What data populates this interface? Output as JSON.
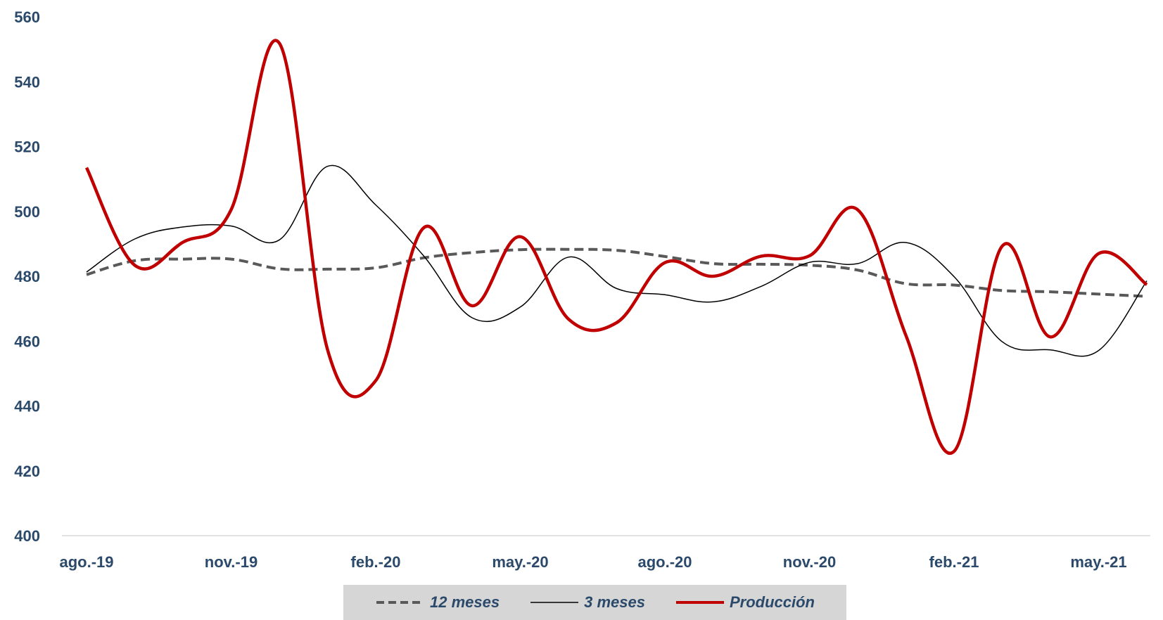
{
  "chart_data": {
    "type": "line",
    "title": "",
    "xlabel": "",
    "ylabel": "",
    "ylim": [
      400,
      560
    ],
    "yticks": [
      "400",
      "420",
      "440",
      "460",
      "480",
      "500",
      "520",
      "540",
      "560"
    ],
    "x": [
      "ago.-19",
      "sep.-19",
      "oct.-19",
      "nov.-19",
      "dic.-19",
      "ene.-20",
      "feb.-20",
      "mar.-20",
      "abr.-20",
      "may.-20",
      "jun.-20",
      "jul.-20",
      "ago.-20",
      "sep.-20",
      "oct.-20",
      "nov.-20",
      "dic.-20",
      "ene.-21",
      "feb.-21",
      "mar.-21",
      "abr.-21",
      "may.-21",
      "jun.-21"
    ],
    "xtick_labels": [
      "ago.-19",
      "nov.-19",
      "feb.-20",
      "may.-20",
      "ago.-20",
      "nov.-20",
      "feb.-21",
      "may.-21"
    ],
    "grid": false,
    "legend_position": "bottom-center",
    "series": [
      {
        "name": "12 meses",
        "style": "dashed",
        "color": "#595959",
        "values": [
          480.5,
          484.8,
          485.3,
          485.3,
          482.3,
          482.2,
          482.6,
          485.7,
          487.3,
          488.2,
          488.3,
          488.0,
          486.1,
          483.9,
          483.7,
          483.4,
          481.9,
          477.7,
          477.3,
          475.6,
          475.2,
          474.5,
          473.8
        ]
      },
      {
        "name": "3 meses",
        "style": "thin",
        "color": "#000000",
        "values": [
          481.3,
          491.5,
          495.2,
          495.5,
          491.2,
          513.9,
          502.0,
          486.2,
          467.2,
          470.5,
          485.9,
          476.2,
          474.3,
          472.1,
          476.9,
          484.3,
          483.9,
          490.4,
          479.9,
          459.8,
          457.3,
          457.1,
          478.6
        ]
      },
      {
        "name": "Producción",
        "style": "thick",
        "color": "#c00000",
        "values": [
          513.5,
          483.4,
          490.5,
          500.5,
          551.9,
          457.4,
          447.8,
          495.0,
          470.9,
          492.2,
          466.8,
          465.7,
          484.2,
          480.0,
          486.2,
          486.3,
          500.5,
          461.8,
          426.0,
          489.3,
          461.3,
          487.0,
          477.4
        ]
      }
    ]
  }
}
